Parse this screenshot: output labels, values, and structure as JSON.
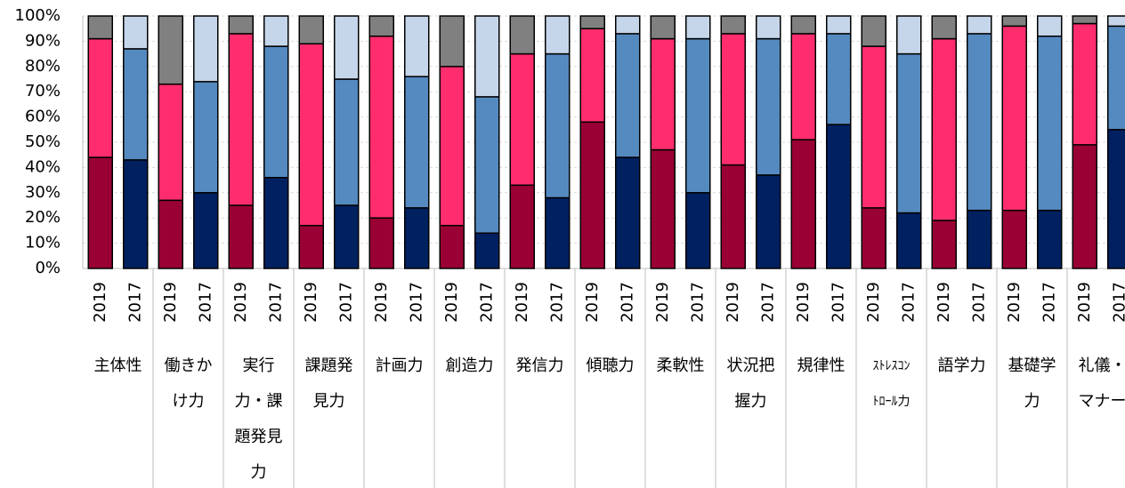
{
  "chart_data": {
    "type": "stacked_bar",
    "categories": [
      "2019",
      "2017",
      "2019",
      "2017",
      "2019",
      "2017",
      "2019",
      "2017",
      "2019",
      "2017",
      "2019",
      "2017",
      "2019",
      "2017",
      "2019",
      "2017",
      "2019",
      "2017",
      "2019",
      "2017",
      "2019",
      "2017",
      "2019",
      "2017",
      "2019",
      "2017",
      "2019",
      "2017",
      "2019",
      "2017"
    ],
    "groups": [
      [
        "主体性"
      ],
      [
        "働きか",
        "け力"
      ],
      [
        "実行",
        "力・課",
        "題発見",
        "力"
      ],
      [
        "課題発",
        "見力"
      ],
      [
        "計画力"
      ],
      [
        "創造力"
      ],
      [
        "発信力"
      ],
      [
        "傾聴力"
      ],
      [
        "柔軟性"
      ],
      [
        "状況把",
        "握力"
      ],
      [
        "規律性"
      ],
      [
        "ｽﾄﾚｽｺﾝ",
        "ﾄﾛｰﾙ力"
      ],
      [
        "語学力"
      ],
      [
        "基礎学",
        "力"
      ],
      [
        "礼儀・",
        "マナー"
      ]
    ],
    "series": [
      {
        "colors": [
          "#990033",
          "#002060",
          "#990033",
          "#002060",
          "#990033",
          "#002060",
          "#990033",
          "#002060",
          "#990033",
          "#002060",
          "#990033",
          "#002060",
          "#990033",
          "#002060",
          "#990033",
          "#002060",
          "#990033",
          "#002060",
          "#990033",
          "#002060",
          "#990033",
          "#002060",
          "#990033",
          "#002060",
          "#990033",
          "#002060",
          "#990033",
          "#002060",
          "#990033",
          "#002060"
        ],
        "values": [
          44,
          43,
          27,
          30,
          25,
          36,
          17,
          25,
          20,
          24,
          17,
          14,
          33,
          28,
          58,
          44,
          47,
          30,
          41,
          37,
          51,
          57,
          24,
          22,
          19,
          23,
          23,
          23,
          49,
          55
        ]
      },
      {
        "colors": [
          "#ff2d6e",
          "#558ac0",
          "#ff2d6e",
          "#558ac0",
          "#ff2d6e",
          "#558ac0",
          "#ff2d6e",
          "#558ac0",
          "#ff2d6e",
          "#558ac0",
          "#ff2d6e",
          "#558ac0",
          "#ff2d6e",
          "#558ac0",
          "#ff2d6e",
          "#558ac0",
          "#ff2d6e",
          "#558ac0",
          "#ff2d6e",
          "#558ac0",
          "#ff2d6e",
          "#558ac0",
          "#ff2d6e",
          "#558ac0",
          "#ff2d6e",
          "#558ac0",
          "#ff2d6e",
          "#558ac0",
          "#ff2d6e",
          "#558ac0"
        ],
        "values": [
          47,
          44,
          46,
          44,
          68,
          52,
          72,
          50,
          72,
          52,
          63,
          54,
          52,
          57,
          37,
          49,
          44,
          61,
          52,
          54,
          42,
          36,
          64,
          63,
          72,
          70,
          73,
          69,
          48,
          41
        ]
      },
      {
        "colors": [
          "#808080",
          "#c6d6ea",
          "#808080",
          "#c6d6ea",
          "#808080",
          "#c6d6ea",
          "#808080",
          "#c6d6ea",
          "#808080",
          "#c6d6ea",
          "#808080",
          "#c6d6ea",
          "#808080",
          "#c6d6ea",
          "#808080",
          "#c6d6ea",
          "#808080",
          "#c6d6ea",
          "#808080",
          "#c6d6ea",
          "#808080",
          "#c6d6ea",
          "#808080",
          "#c6d6ea",
          "#808080",
          "#c6d6ea",
          "#808080",
          "#c6d6ea",
          "#808080",
          "#c6d6ea"
        ],
        "values": [
          9,
          13,
          27,
          26,
          7,
          12,
          11,
          25,
          8,
          24,
          20,
          32,
          15,
          15,
          5,
          7,
          9,
          9,
          7,
          9,
          7,
          7,
          12,
          15,
          9,
          7,
          4,
          8,
          3,
          4
        ]
      }
    ],
    "ylim": [
      0,
      100
    ],
    "yticks": [
      {
        "value": 0,
        "label": "0%"
      },
      {
        "value": 10,
        "label": "10%"
      },
      {
        "value": 20,
        "label": "20%"
      },
      {
        "value": 30,
        "label": "30%"
      },
      {
        "value": 40,
        "label": "40%"
      },
      {
        "value": 50,
        "label": "50%"
      },
      {
        "value": 60,
        "label": "60%"
      },
      {
        "value": 70,
        "label": "70%"
      },
      {
        "value": 80,
        "label": "80%"
      },
      {
        "value": 90,
        "label": "90%"
      },
      {
        "value": 100,
        "label": "100%"
      }
    ],
    "grid": true
  }
}
